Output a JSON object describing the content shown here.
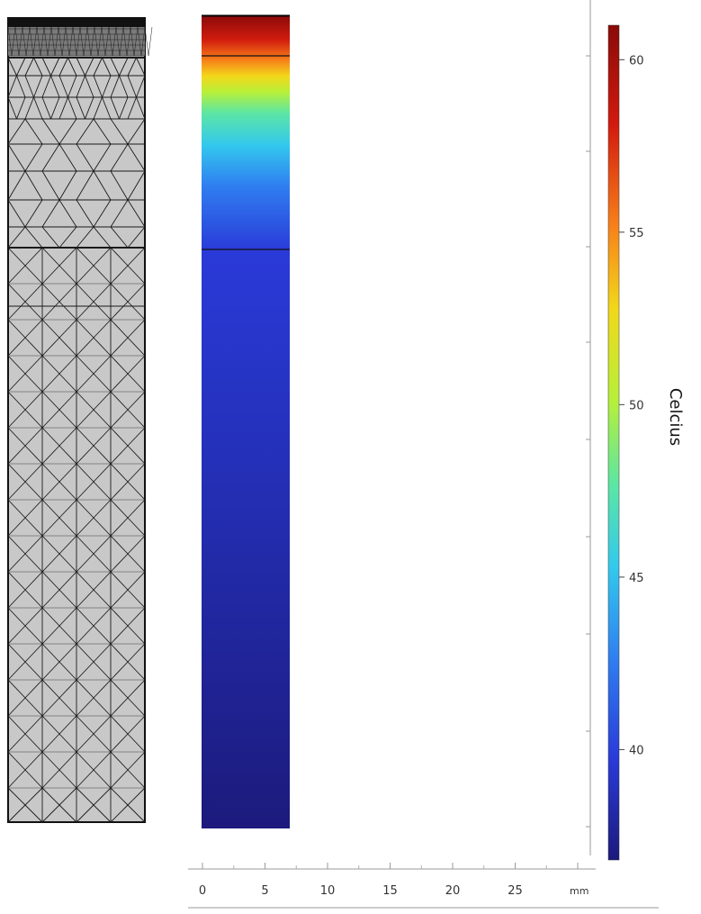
{
  "figure": {
    "colorbar": {
      "title": "Celcius",
      "ticks": [
        "60",
        "55",
        "50",
        "45",
        "40"
      ],
      "range": [
        36.8,
        61
      ],
      "colormap": [
        "#1c1a7c",
        "#2a3ad8",
        "#2f7ef0",
        "#33c8ee",
        "#5ce6a4",
        "#b6f03a",
        "#f2d81a",
        "#f7801a",
        "#d21b0e",
        "#8a0a08"
      ]
    },
    "x_axis": {
      "ticks": [
        "0",
        "5",
        "10",
        "15",
        "20",
        "25"
      ],
      "unit": "mm",
      "range": [
        0,
        30
      ]
    },
    "colors": {
      "mesh_fill": "#c8c8c8",
      "mesh_line": "#1a1a1a",
      "axis": "#9a9a9a"
    }
  }
}
